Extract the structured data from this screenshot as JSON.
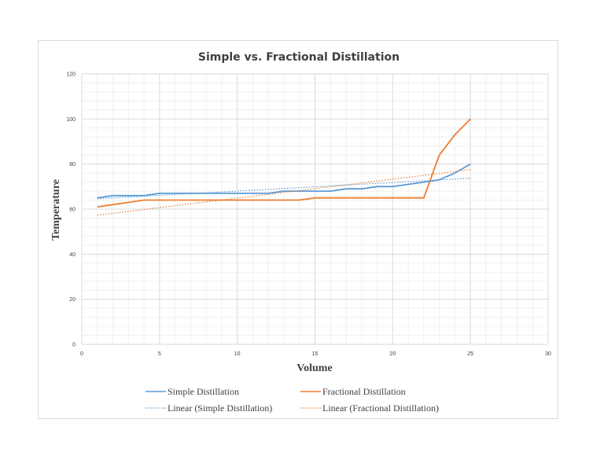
{
  "chart_data": {
    "type": "line",
    "title": "Simple vs. Fractional Distillation",
    "xlabel": "Volume",
    "ylabel": "Temperature",
    "xlim": [
      0,
      30
    ],
    "ylim": [
      0,
      120
    ],
    "x_ticks": [
      "0",
      "5",
      "10",
      "15",
      "20",
      "25",
      "30"
    ],
    "y_ticks": [
      "0",
      "20",
      "40",
      "60",
      "80",
      "100",
      "120"
    ],
    "grid": true,
    "legend_position": "bottom",
    "series": [
      {
        "name": "Simple Distillation",
        "color": "#5b9bd5",
        "style": "solid",
        "x": [
          1,
          2,
          3,
          4,
          5,
          6,
          7,
          8,
          9,
          10,
          11,
          12,
          13,
          14,
          15,
          16,
          17,
          18,
          19,
          20,
          21,
          22,
          23,
          24,
          25
        ],
        "y": [
          65,
          66,
          66,
          66,
          67,
          67,
          67,
          67,
          67,
          67,
          67,
          67,
          68,
          68,
          68,
          68,
          69,
          69,
          70,
          70,
          71,
          72,
          73,
          76,
          80
        ]
      },
      {
        "name": "Fractional Distillation",
        "color": "#ed7d31",
        "style": "solid",
        "x": [
          1,
          2,
          3,
          4,
          5,
          6,
          7,
          8,
          9,
          10,
          11,
          12,
          13,
          14,
          15,
          16,
          17,
          18,
          19,
          20,
          21,
          22,
          23,
          24,
          25
        ],
        "y": [
          61,
          62,
          63,
          64,
          64,
          64,
          64,
          64,
          64,
          64,
          64,
          64,
          64,
          64,
          65,
          65,
          65,
          65,
          65,
          65,
          65,
          65,
          84,
          93,
          100
        ]
      },
      {
        "name": "Linear (Simple Distillation)",
        "color": "#5b9bd5",
        "style": "dotted",
        "x": [
          1,
          25
        ],
        "y": [
          64.6,
          73.7
        ]
      },
      {
        "name": "Linear (Fractional Distillation)",
        "color": "#ed7d31",
        "style": "dotted",
        "x": [
          1,
          25
        ],
        "y": [
          57.3,
          77.5
        ]
      }
    ]
  }
}
